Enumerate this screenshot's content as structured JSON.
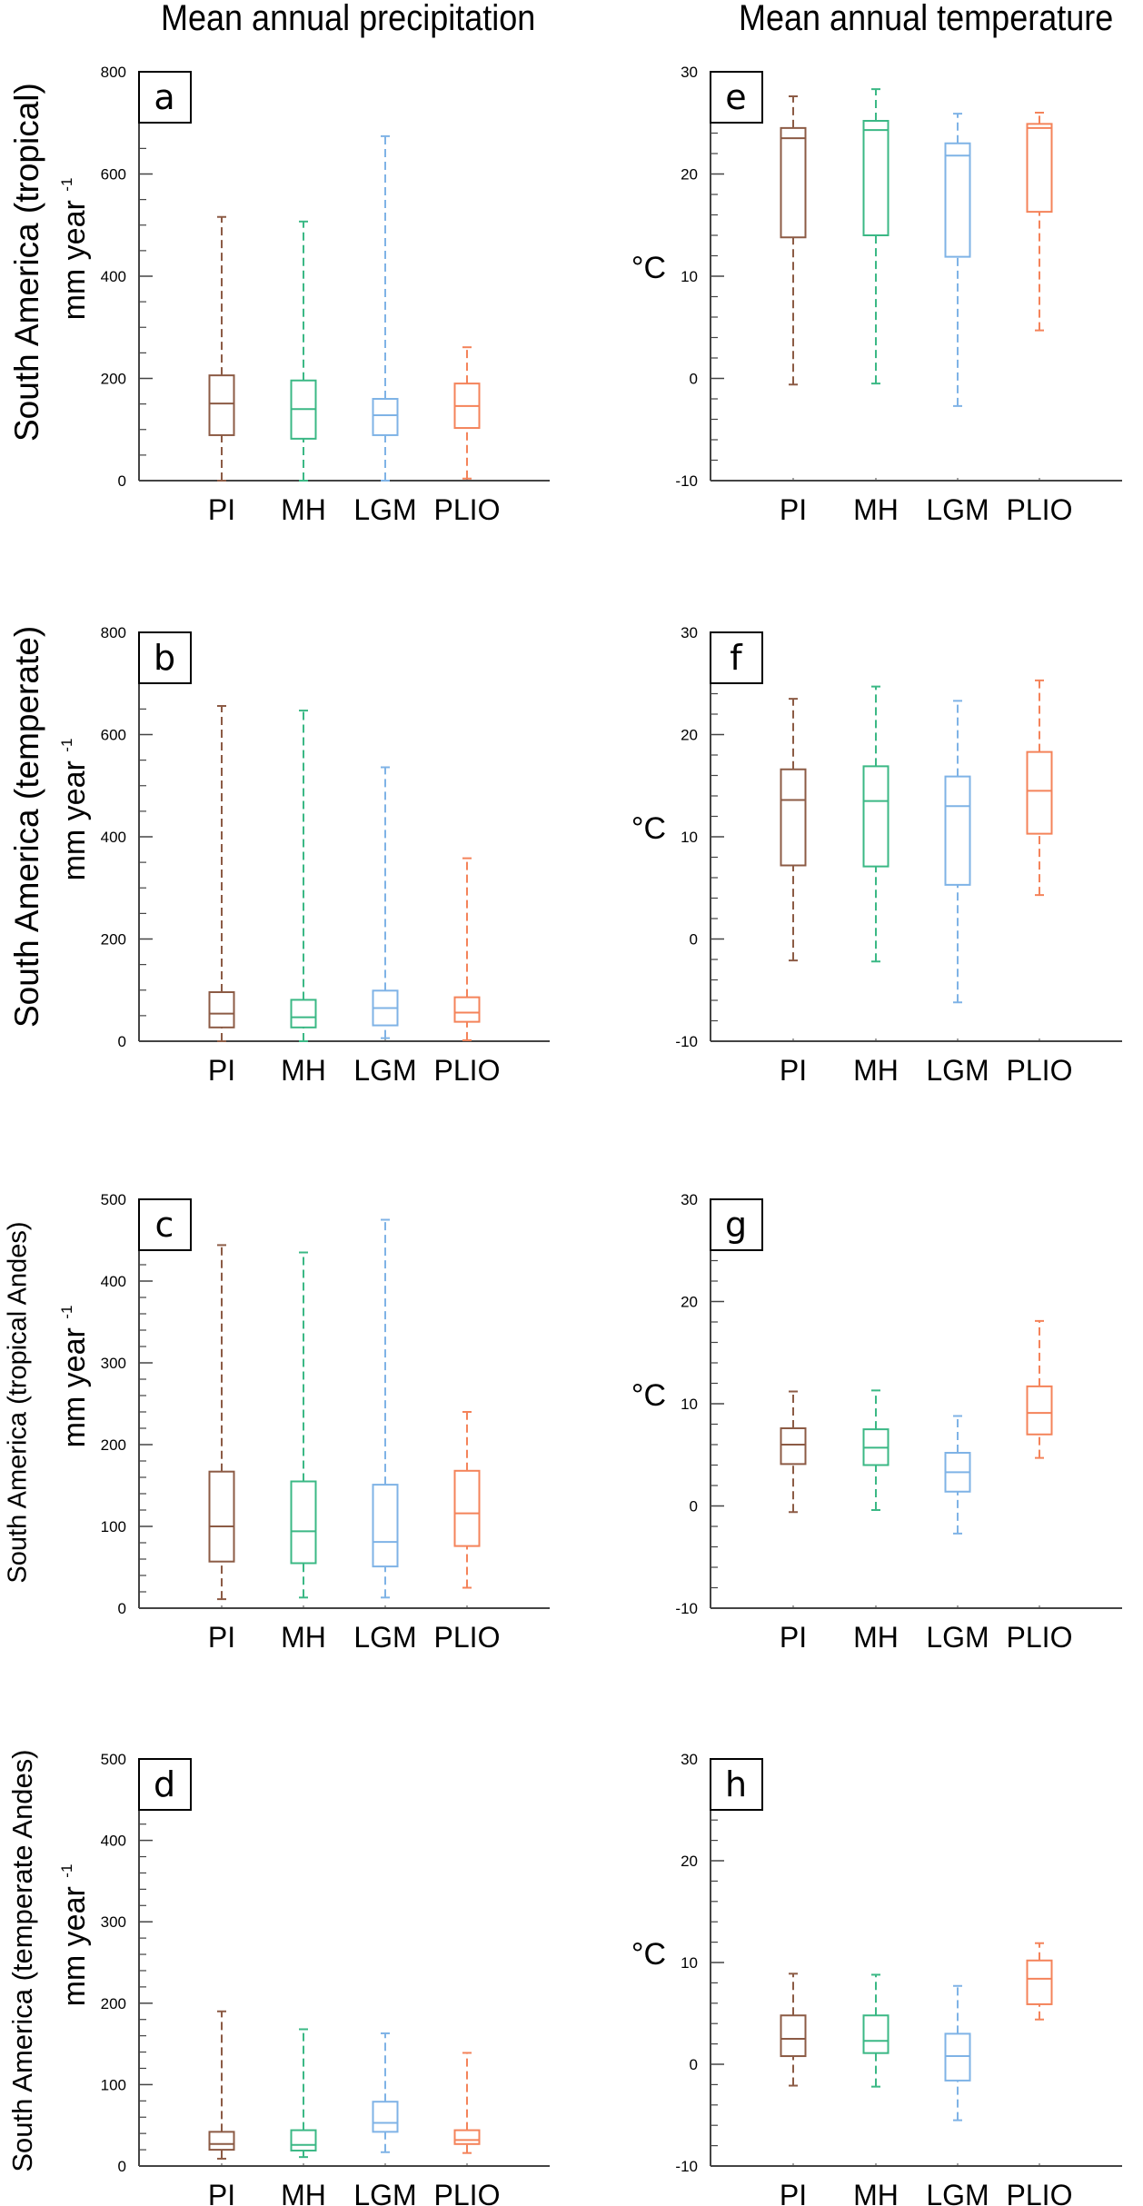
{
  "titles": {
    "left": "Mean annual precipitation",
    "right": "Mean annual temperature"
  },
  "row_labels": [
    "South America (tropical)",
    "South America (temperate)",
    "South America (tropical Andes)",
    "South America (temperate Andes)"
  ],
  "units": {
    "precip_main": "mm year",
    "precip_sup": "-1",
    "temp": "°C"
  },
  "colors": {
    "PI": "#8c5b45",
    "MH": "#3bb885",
    "LGM": "#7fb3e6",
    "PLIO": "#f4835a",
    "axis": "#444444"
  },
  "chart_data": [
    {
      "panel": "a",
      "type": "box",
      "variable": "Mean annual precipitation",
      "region": "South America (tropical)",
      "ylabel": "mm year-1",
      "ylim": [
        0,
        800
      ],
      "yticks": [
        0,
        200,
        400,
        600,
        800
      ],
      "minor_step": 50,
      "categories": [
        "PI",
        "MH",
        "LGM",
        "PLIO"
      ],
      "boxes": [
        {
          "min": 0,
          "q1": 89,
          "median": 151,
          "q3": 206,
          "max": 516
        },
        {
          "min": 0,
          "q1": 82,
          "median": 140,
          "q3": 196,
          "max": 507
        },
        {
          "min": 0,
          "q1": 89,
          "median": 128,
          "q3": 160,
          "max": 674
        },
        {
          "min": 4,
          "q1": 103,
          "median": 146,
          "q3": 190,
          "max": 261
        }
      ]
    },
    {
      "panel": "b",
      "type": "box",
      "variable": "Mean annual precipitation",
      "region": "South America (temperate)",
      "ylabel": "mm year-1",
      "ylim": [
        0,
        800
      ],
      "yticks": [
        0,
        200,
        400,
        600,
        800
      ],
      "minor_step": 50,
      "categories": [
        "PI",
        "MH",
        "LGM",
        "PLIO"
      ],
      "boxes": [
        {
          "min": 0,
          "q1": 27,
          "median": 54,
          "q3": 96,
          "max": 656
        },
        {
          "min": 0,
          "q1": 27,
          "median": 47,
          "q3": 81,
          "max": 647
        },
        {
          "min": 6,
          "q1": 31,
          "median": 65,
          "q3": 99,
          "max": 536
        },
        {
          "min": 2,
          "q1": 38,
          "median": 56,
          "q3": 86,
          "max": 358
        }
      ]
    },
    {
      "panel": "c",
      "type": "box",
      "variable": "Mean annual precipitation",
      "region": "South America (tropical Andes)",
      "ylabel": "mm year-1",
      "ylim": [
        0,
        500
      ],
      "yticks": [
        0,
        100,
        200,
        300,
        400,
        500
      ],
      "minor_step": 20,
      "categories": [
        "PI",
        "MH",
        "LGM",
        "PLIO"
      ],
      "boxes": [
        {
          "min": 11,
          "q1": 57,
          "median": 100,
          "q3": 167,
          "max": 444
        },
        {
          "min": 13,
          "q1": 55,
          "median": 94,
          "q3": 155,
          "max": 435
        },
        {
          "min": 13,
          "q1": 51,
          "median": 81,
          "q3": 151,
          "max": 475
        },
        {
          "min": 25,
          "q1": 76,
          "median": 116,
          "q3": 168,
          "max": 240
        }
      ]
    },
    {
      "panel": "d",
      "type": "box",
      "variable": "Mean annual precipitation",
      "region": "South America (temperate Andes)",
      "ylabel": "mm year-1",
      "ylim": [
        0,
        500
      ],
      "yticks": [
        0,
        100,
        200,
        300,
        400,
        500
      ],
      "minor_step": 20,
      "categories": [
        "PI",
        "MH",
        "LGM",
        "PLIO"
      ],
      "boxes": [
        {
          "min": 9,
          "q1": 20,
          "median": 27,
          "q3": 42,
          "max": 190
        },
        {
          "min": 11,
          "q1": 19,
          "median": 26,
          "q3": 44,
          "max": 168
        },
        {
          "min": 17,
          "q1": 42,
          "median": 53,
          "q3": 79,
          "max": 163
        },
        {
          "min": 16,
          "q1": 27,
          "median": 32,
          "q3": 44,
          "max": 139
        }
      ]
    },
    {
      "panel": "e",
      "type": "box",
      "variable": "Mean annual temperature",
      "region": "South America (tropical)",
      "ylabel": "°C",
      "ylim": [
        -10,
        30
      ],
      "yticks": [
        -10,
        0,
        10,
        20,
        30
      ],
      "minor_step": 2,
      "categories": [
        "PI",
        "MH",
        "LGM",
        "PLIO"
      ],
      "boxes": [
        {
          "min": -0.6,
          "q1": 13.8,
          "median": 23.5,
          "q3": 24.5,
          "max": 27.6
        },
        {
          "min": -0.5,
          "q1": 14.0,
          "median": 24.3,
          "q3": 25.2,
          "max": 28.3
        },
        {
          "min": -2.7,
          "q1": 11.9,
          "median": 21.8,
          "q3": 23.0,
          "max": 25.9
        },
        {
          "min": 4.7,
          "q1": 16.3,
          "median": 24.5,
          "q3": 24.9,
          "max": 26.0
        }
      ]
    },
    {
      "panel": "f",
      "type": "box",
      "variable": "Mean annual temperature",
      "region": "South America (temperate)",
      "ylabel": "°C",
      "ylim": [
        -10,
        30
      ],
      "yticks": [
        -10,
        0,
        10,
        20,
        30
      ],
      "minor_step": 2,
      "categories": [
        "PI",
        "MH",
        "LGM",
        "PLIO"
      ],
      "boxes": [
        {
          "min": -2.1,
          "q1": 7.2,
          "median": 13.6,
          "q3": 16.6,
          "max": 23.5
        },
        {
          "min": -2.2,
          "q1": 7.1,
          "median": 13.5,
          "q3": 16.9,
          "max": 24.7
        },
        {
          "min": -6.2,
          "q1": 5.3,
          "median": 13.0,
          "q3": 15.9,
          "max": 23.3
        },
        {
          "min": 4.3,
          "q1": 10.3,
          "median": 14.5,
          "q3": 18.3,
          "max": 25.3
        }
      ]
    },
    {
      "panel": "g",
      "type": "box",
      "variable": "Mean annual temperature",
      "region": "South America (tropical Andes)",
      "ylabel": "°C",
      "ylim": [
        -10,
        30
      ],
      "yticks": [
        -10,
        0,
        10,
        20,
        30
      ],
      "minor_step": 2,
      "categories": [
        "PI",
        "MH",
        "LGM",
        "PLIO"
      ],
      "boxes": [
        {
          "min": -0.6,
          "q1": 4.1,
          "median": 6.0,
          "q3": 7.6,
          "max": 11.2
        },
        {
          "min": -0.4,
          "q1": 4.0,
          "median": 5.7,
          "q3": 7.5,
          "max": 11.3
        },
        {
          "min": -2.7,
          "q1": 1.4,
          "median": 3.3,
          "q3": 5.2,
          "max": 8.8
        },
        {
          "min": 4.7,
          "q1": 7.0,
          "median": 9.1,
          "q3": 11.7,
          "max": 18.1
        }
      ]
    },
    {
      "panel": "h",
      "type": "box",
      "variable": "Mean annual temperature",
      "region": "South America (temperate Andes)",
      "ylabel": "°C",
      "ylim": [
        -10,
        30
      ],
      "yticks": [
        -10,
        0,
        10,
        20,
        30
      ],
      "minor_step": 2,
      "categories": [
        "PI",
        "MH",
        "LGM",
        "PLIO"
      ],
      "boxes": [
        {
          "min": -2.1,
          "q1": 0.8,
          "median": 2.5,
          "q3": 4.8,
          "max": 8.9
        },
        {
          "min": -2.2,
          "q1": 1.1,
          "median": 2.3,
          "q3": 4.8,
          "max": 8.8
        },
        {
          "min": -5.5,
          "q1": -1.6,
          "median": 0.8,
          "q3": 3.0,
          "max": 7.7
        },
        {
          "min": 4.4,
          "q1": 5.9,
          "median": 8.4,
          "q3": 10.2,
          "max": 11.9
        }
      ]
    }
  ]
}
